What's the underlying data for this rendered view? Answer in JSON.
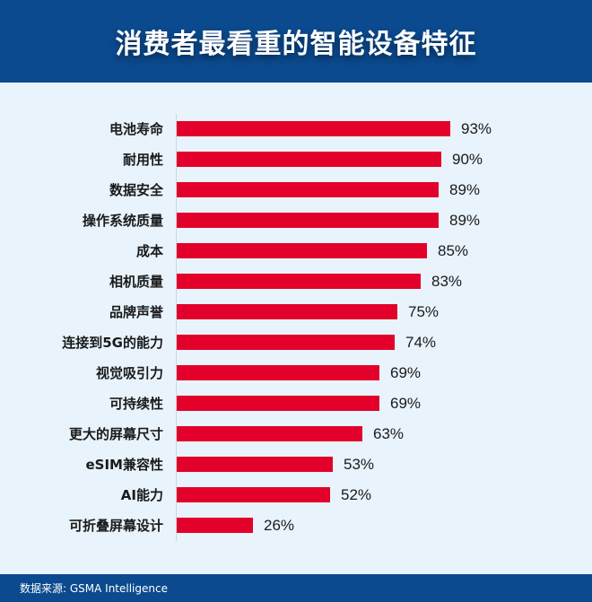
{
  "header": {
    "title": "消费者最看重的智能设备特征"
  },
  "footer": {
    "source": "数据来源: GSMA Intelligence"
  },
  "colors": {
    "header_bg": "#0b4a8e",
    "page_bg": "#e8f3fc",
    "bar": "#e3002b"
  },
  "chart_data": {
    "type": "bar",
    "orientation": "horizontal",
    "title": "消费者最看重的智能设备特征",
    "xlabel": "",
    "ylabel": "",
    "xlim": [
      0,
      100
    ],
    "grid": false,
    "legend": null,
    "unit": "%",
    "categories": [
      "电池寿命",
      "耐用性",
      "数据安全",
      "操作系统质量",
      "成本",
      "相机质量",
      "品牌声誉",
      "连接到5G的能力",
      "视觉吸引力",
      "可持续性",
      "更大的屏幕尺寸",
      "eSIM兼容性",
      "AI能力",
      "可折叠屏幕设计"
    ],
    "values": [
      93,
      90,
      89,
      89,
      85,
      83,
      75,
      74,
      69,
      69,
      63,
      53,
      52,
      26
    ],
    "value_labels": [
      "93%",
      "90%",
      "89%",
      "89%",
      "85%",
      "83%",
      "75%",
      "74%",
      "69%",
      "69%",
      "63%",
      "53%",
      "52%",
      "26%"
    ],
    "source": "数据来源: GSMA Intelligence"
  }
}
